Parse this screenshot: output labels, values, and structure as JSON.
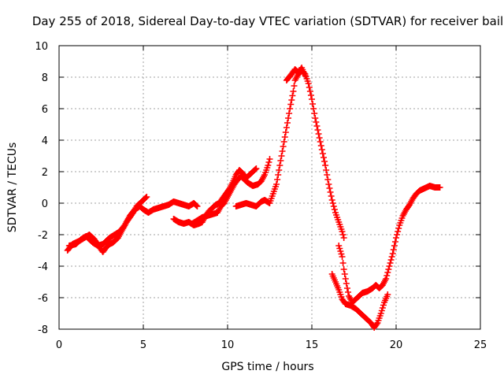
{
  "chart_data": {
    "type": "scatter",
    "title": "Day 255 of 2018, Sidereal Day-to-day VTEC variation (SDTVAR) for receiver bail",
    "xlabel": "GPS time / hours",
    "ylabel": "SDTVAR / TECUs",
    "xlim": [
      0,
      25
    ],
    "ylim": [
      -8,
      10
    ],
    "xticks": [
      "0",
      "5",
      "10",
      "15",
      "20",
      "25"
    ],
    "yticks": [
      "-8",
      "-6",
      "-4",
      "-2",
      "0",
      "2",
      "4",
      "6",
      "8",
      "10"
    ],
    "grid": true,
    "marker": "plus",
    "series": [
      {
        "name": "bail",
        "color": "#ff0000",
        "segments": [
          [
            [
              0.5,
              -3.0
            ],
            [
              0.8,
              -2.6
            ],
            [
              1.2,
              -2.4
            ],
            [
              1.5,
              -2.2
            ],
            [
              1.8,
              -2.0
            ],
            [
              2.1,
              -2.3
            ],
            [
              2.4,
              -2.8
            ],
            [
              2.6,
              -3.1
            ],
            [
              2.8,
              -2.8
            ],
            [
              3.0,
              -2.6
            ],
            [
              3.2,
              -2.5
            ],
            [
              3.5,
              -2.2
            ],
            [
              3.8,
              -1.6
            ],
            [
              4.0,
              -1.2
            ],
            [
              4.2,
              -0.9
            ],
            [
              4.4,
              -0.6
            ],
            [
              4.6,
              -0.2
            ],
            [
              4.8,
              0.0
            ],
            [
              5.0,
              0.2
            ],
            [
              5.2,
              0.4
            ]
          ],
          [
            [
              0.6,
              -2.7
            ],
            [
              1.0,
              -2.6
            ],
            [
              1.3,
              -2.3
            ],
            [
              1.6,
              -2.1
            ],
            [
              2.0,
              -2.5
            ],
            [
              2.3,
              -2.7
            ],
            [
              2.6,
              -2.6
            ],
            [
              3.0,
              -2.2
            ],
            [
              3.3,
              -2.0
            ],
            [
              3.6,
              -1.8
            ],
            [
              3.9,
              -1.4
            ],
            [
              4.2,
              -0.8
            ],
            [
              4.5,
              -0.4
            ],
            [
              4.8,
              -0.2
            ],
            [
              5.0,
              -0.4
            ],
            [
              5.3,
              -0.6
            ],
            [
              5.6,
              -0.4
            ],
            [
              5.9,
              -0.3
            ],
            [
              6.2,
              -0.2
            ],
            [
              6.5,
              -0.1
            ],
            [
              6.8,
              0.1
            ],
            [
              7.1,
              0.0
            ],
            [
              7.4,
              -0.1
            ],
            [
              7.7,
              -0.2
            ],
            [
              8.0,
              0.0
            ],
            [
              8.2,
              -0.2
            ]
          ],
          [
            [
              6.8,
              -1.0
            ],
            [
              7.1,
              -1.2
            ],
            [
              7.4,
              -1.3
            ],
            [
              7.7,
              -1.2
            ],
            [
              8.0,
              -1.4
            ],
            [
              8.3,
              -1.3
            ],
            [
              8.5,
              -1.2
            ],
            [
              8.7,
              -0.8
            ],
            [
              8.9,
              -0.5
            ],
            [
              9.1,
              -0.3
            ],
            [
              9.3,
              -0.1
            ],
            [
              9.5,
              0.0
            ],
            [
              9.7,
              0.3
            ],
            [
              9.9,
              0.6
            ],
            [
              10.1,
              0.9
            ],
            [
              10.3,
              1.3
            ],
            [
              10.5,
              1.8
            ],
            [
              10.7,
              2.1
            ],
            [
              10.9,
              1.9
            ],
            [
              11.1,
              1.6
            ],
            [
              11.3,
              1.8
            ],
            [
              11.5,
              2.0
            ],
            [
              11.7,
              2.2
            ]
          ],
          [
            [
              7.9,
              -1.3
            ],
            [
              8.2,
              -1.1
            ],
            [
              8.5,
              -0.9
            ],
            [
              8.8,
              -0.8
            ],
            [
              9.1,
              -0.7
            ],
            [
              9.4,
              -0.6
            ],
            [
              9.6,
              -0.2
            ],
            [
              9.8,
              0.0
            ],
            [
              10.0,
              0.4
            ],
            [
              10.2,
              0.8
            ],
            [
              10.4,
              1.2
            ],
            [
              10.6,
              1.5
            ],
            [
              10.8,
              1.7
            ],
            [
              11.0,
              1.5
            ],
            [
              11.2,
              1.3
            ],
            [
              11.5,
              1.1
            ],
            [
              11.8,
              1.2
            ],
            [
              12.0,
              1.4
            ],
            [
              12.2,
              1.8
            ],
            [
              12.4,
              2.4
            ],
            [
              12.5,
              2.8
            ]
          ],
          [
            [
              10.5,
              -0.2
            ],
            [
              10.8,
              -0.1
            ],
            [
              11.1,
              0.0
            ],
            [
              11.4,
              -0.1
            ],
            [
              11.7,
              -0.2
            ],
            [
              12.0,
              0.1
            ],
            [
              12.2,
              0.2
            ],
            [
              12.5,
              0.0
            ],
            [
              12.7,
              0.6
            ],
            [
              12.9,
              1.2
            ],
            [
              13.1,
              2.4
            ],
            [
              13.3,
              3.6
            ],
            [
              13.5,
              4.8
            ],
            [
              13.7,
              6.0
            ],
            [
              13.9,
              7.1
            ],
            [
              14.0,
              7.8
            ],
            [
              14.2,
              8.2
            ],
            [
              14.4,
              8.4
            ],
            [
              14.6,
              8.2
            ],
            [
              14.8,
              7.6
            ],
            [
              15.0,
              6.6
            ],
            [
              15.2,
              5.4
            ],
            [
              15.4,
              4.4
            ],
            [
              15.6,
              3.4
            ],
            [
              15.8,
              2.4
            ],
            [
              16.0,
              1.2
            ],
            [
              16.2,
              0.2
            ],
            [
              16.4,
              -0.6
            ],
            [
              16.6,
              -1.2
            ],
            [
              16.8,
              -1.8
            ],
            [
              16.9,
              -2.2
            ]
          ],
          [
            [
              13.5,
              7.8
            ],
            [
              13.8,
              8.2
            ],
            [
              14.0,
              8.5
            ],
            [
              14.2,
              8.3
            ],
            [
              14.4,
              8.6
            ],
            [
              14.6,
              8.1
            ]
          ],
          [
            [
              16.6,
              -2.7
            ],
            [
              16.8,
              -3.4
            ],
            [
              16.9,
              -4.2
            ],
            [
              17.0,
              -4.8
            ],
            [
              17.1,
              -5.4
            ],
            [
              17.2,
              -5.9
            ],
            [
              17.4,
              -6.3
            ],
            [
              17.7,
              -6.0
            ],
            [
              18.0,
              -5.7
            ],
            [
              18.3,
              -5.6
            ],
            [
              18.6,
              -5.4
            ],
            [
              18.8,
              -5.2
            ],
            [
              19.0,
              -5.4
            ],
            [
              19.2,
              -5.2
            ],
            [
              19.4,
              -4.8
            ],
            [
              19.6,
              -4.0
            ],
            [
              19.8,
              -3.2
            ],
            [
              20.0,
              -2.2
            ],
            [
              20.2,
              -1.4
            ],
            [
              20.4,
              -0.8
            ],
            [
              20.6,
              -0.4
            ],
            [
              20.8,
              -0.1
            ],
            [
              21.0,
              0.3
            ],
            [
              21.2,
              0.6
            ],
            [
              21.4,
              0.8
            ],
            [
              21.6,
              0.9
            ],
            [
              21.8,
              1.0
            ],
            [
              22.0,
              1.1
            ],
            [
              22.3,
              1.0
            ],
            [
              22.6,
              1.0
            ]
          ],
          [
            [
              16.2,
              -4.5
            ],
            [
              16.4,
              -5.0
            ],
            [
              16.6,
              -5.5
            ],
            [
              16.8,
              -6.1
            ],
            [
              17.0,
              -6.4
            ],
            [
              17.3,
              -6.5
            ],
            [
              17.6,
              -6.7
            ],
            [
              17.9,
              -7.0
            ],
            [
              18.2,
              -7.3
            ],
            [
              18.5,
              -7.6
            ],
            [
              18.7,
              -7.9
            ],
            [
              18.9,
              -7.6
            ],
            [
              19.1,
              -7.0
            ],
            [
              19.3,
              -6.3
            ],
            [
              19.5,
              -5.8
            ]
          ]
        ]
      }
    ]
  }
}
